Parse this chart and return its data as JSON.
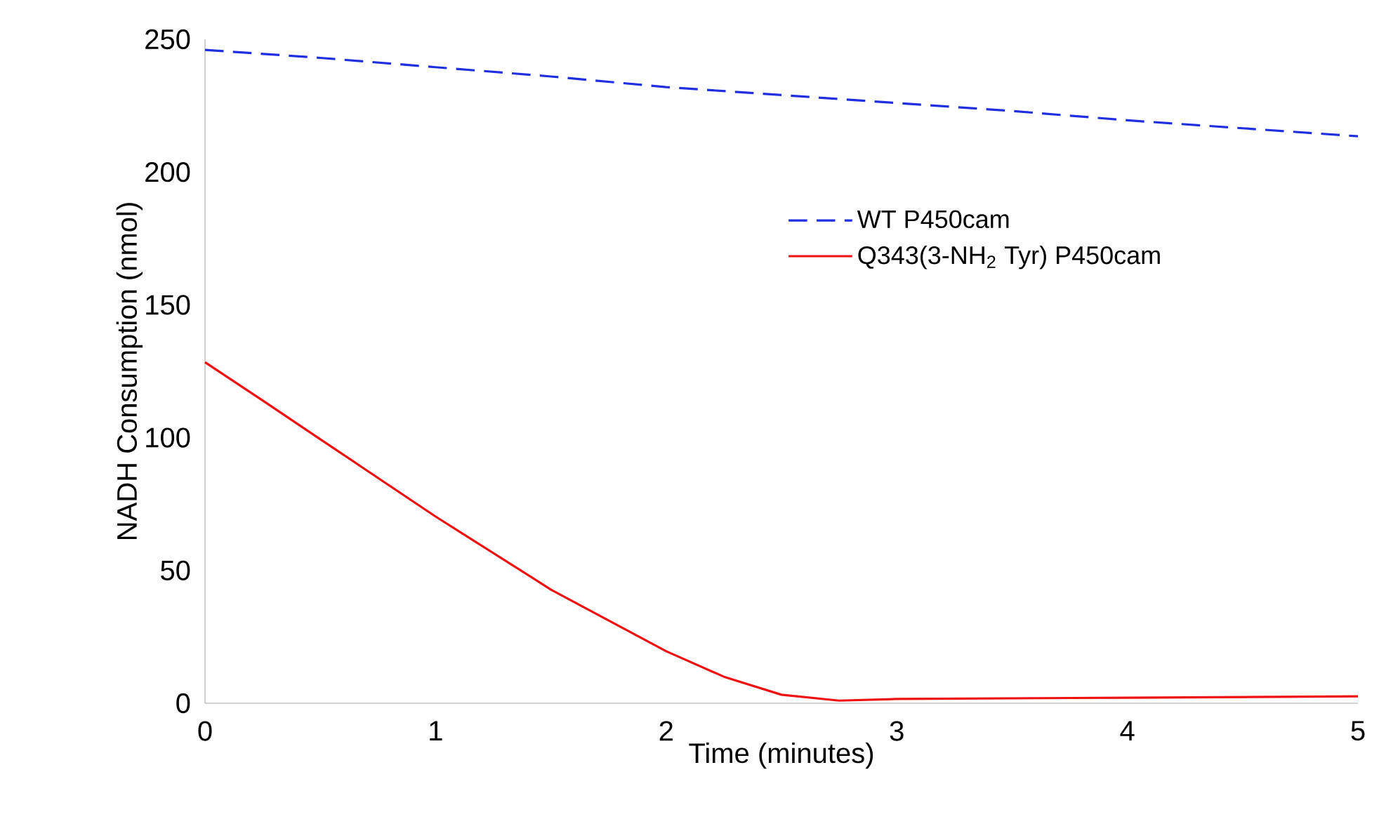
{
  "chart_data": {
    "type": "line",
    "xlabel": "Time (minutes)",
    "ylabel": "NADH Consumption (nmol)",
    "xlim": [
      0,
      5
    ],
    "ylim": [
      0,
      250
    ],
    "xticks": [
      0,
      1,
      2,
      3,
      4,
      5
    ],
    "yticks": [
      0,
      50,
      100,
      150,
      200,
      250
    ],
    "grid": false,
    "legend": "right",
    "marker": "none",
    "series": [
      {
        "name": "WT P450cam",
        "color": "#1f2fe0",
        "line_style": "dashed",
        "x": [
          0,
          0.5,
          1,
          1.5,
          2,
          2.5,
          3,
          3.5,
          4,
          4.5,
          5
        ],
        "values": [
          246,
          243,
          239.5,
          236,
          232,
          229,
          226,
          223,
          219.5,
          216.5,
          213.5
        ]
      },
      {
        "name": "Q343(3-NH$_{2}$ Tyr) P450cam",
        "color": "#ee1111",
        "line_style": "solid",
        "x": [
          0,
          0.25,
          0.5,
          1,
          1.5,
          2,
          2.25,
          2.5,
          2.75,
          3,
          4,
          5
        ],
        "values": [
          128.4,
          114,
          99.4,
          70.3,
          42.8,
          19.6,
          10,
          3.2,
          1,
          1.6,
          2.1,
          2.6
        ]
      }
    ]
  }
}
